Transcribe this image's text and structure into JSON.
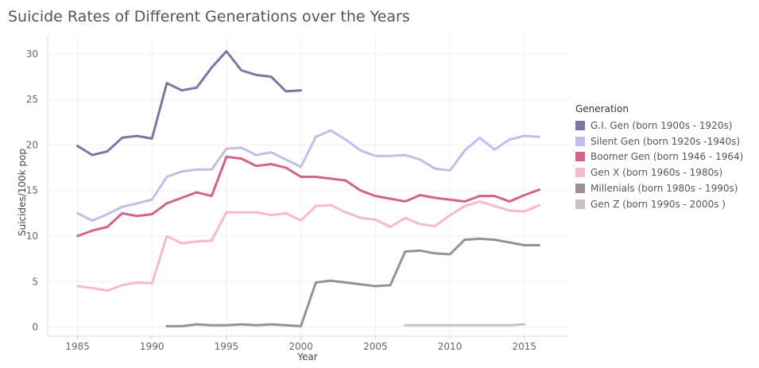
{
  "chart_data": {
    "type": "line",
    "title": "Suicide Rates of Different Generations over the Years",
    "xlabel": "Year",
    "ylabel": "Suicides/100k pop",
    "xlim": [
      1983,
      2018
    ],
    "ylim": [
      -1,
      32
    ],
    "x_ticks": [
      1985,
      1990,
      1995,
      2000,
      2005,
      2010,
      2015
    ],
    "y_ticks": [
      0,
      5,
      10,
      15,
      20,
      25,
      30
    ],
    "grid": true,
    "legend_title": "Generation",
    "legend_position": "right",
    "series": [
      {
        "name": "G.I. Gen (born 1900s - 1920s)",
        "color": "#8173a9",
        "x": [
          1985,
          1986,
          1987,
          1988,
          1989,
          1990,
          1991,
          1992,
          1993,
          1994,
          1995,
          1996,
          1997,
          1998,
          1999,
          2000
        ],
        "y": [
          19.9,
          18.9,
          19.3,
          20.8,
          21.0,
          20.7,
          26.8,
          26.0,
          26.3,
          28.5,
          30.3,
          28.2,
          27.7,
          27.5,
          25.9,
          26.0
        ]
      },
      {
        "name": "Silent Gen (born 1920s -1940s)",
        "color": "#c5bde9",
        "x": [
          1985,
          1986,
          1987,
          1988,
          1989,
          1990,
          1991,
          1992,
          1993,
          1994,
          1995,
          1996,
          1997,
          1998,
          1999,
          2000,
          2001,
          2002,
          2003,
          2004,
          2005,
          2006,
          2007,
          2008,
          2009,
          2010,
          2011,
          2012,
          2013,
          2014,
          2015,
          2016
        ],
        "y": [
          12.5,
          11.7,
          12.4,
          13.2,
          13.6,
          14.0,
          16.5,
          17.1,
          17.3,
          17.3,
          19.6,
          19.7,
          18.9,
          19.2,
          18.4,
          17.6,
          20.9,
          21.6,
          20.6,
          19.4,
          18.8,
          18.8,
          18.9,
          18.4,
          17.4,
          17.2,
          19.4,
          20.8,
          19.5,
          20.6,
          21.0,
          20.9
        ]
      },
      {
        "name": "Boomer Gen (born 1946 - 1964)",
        "color": "#d5628b",
        "x": [
          1985,
          1986,
          1987,
          1988,
          1989,
          1990,
          1991,
          1992,
          1993,
          1994,
          1995,
          1996,
          1997,
          1998,
          1999,
          2000,
          2001,
          2002,
          2003,
          2004,
          2005,
          2006,
          2007,
          2008,
          2009,
          2010,
          2011,
          2012,
          2013,
          2014,
          2015,
          2016
        ],
        "y": [
          10.0,
          10.6,
          11.0,
          12.5,
          12.2,
          12.4,
          13.6,
          14.2,
          14.8,
          14.4,
          18.7,
          18.5,
          17.7,
          17.9,
          17.5,
          16.5,
          16.5,
          16.3,
          16.1,
          15.0,
          14.4,
          14.1,
          13.8,
          14.5,
          14.2,
          14.0,
          13.8,
          14.4,
          14.4,
          13.8,
          14.5,
          15.1
        ]
      },
      {
        "name": "Gen X (born 1960s - 1980s)",
        "color": "#f7b8d0",
        "x": [
          1985,
          1986,
          1987,
          1988,
          1989,
          1990,
          1991,
          1992,
          1993,
          1994,
          1995,
          1996,
          1997,
          1998,
          1999,
          2000,
          2001,
          2002,
          2003,
          2004,
          2005,
          2006,
          2007,
          2008,
          2009,
          2010,
          2011,
          2012,
          2013,
          2014,
          2015,
          2016
        ],
        "y": [
          4.5,
          4.3,
          4.0,
          4.6,
          4.9,
          4.8,
          10.0,
          9.2,
          9.4,
          9.5,
          12.6,
          12.6,
          12.6,
          12.3,
          12.5,
          11.7,
          13.3,
          13.4,
          12.6,
          12.0,
          11.8,
          11.0,
          12.0,
          11.3,
          11.1,
          12.3,
          13.3,
          13.8,
          13.3,
          12.8,
          12.7,
          13.4
        ]
      },
      {
        "name": "Millenials (born 1980s - 1990s)",
        "color": "#9b908f",
        "x": [
          1991,
          1992,
          1993,
          1994,
          1995,
          1996,
          1997,
          1998,
          1999,
          2000,
          2001,
          2002,
          2003,
          2004,
          2005,
          2006,
          2007,
          2008,
          2009,
          2010,
          2011,
          2012,
          2013,
          2014,
          2015,
          2016
        ],
        "y": [
          0.1,
          0.1,
          0.3,
          0.2,
          0.2,
          0.3,
          0.2,
          0.3,
          0.2,
          0.1,
          4.9,
          5.1,
          4.9,
          4.7,
          4.5,
          4.6,
          8.3,
          8.4,
          8.1,
          8.0,
          9.6,
          9.7,
          9.6,
          9.3,
          9.0,
          9.0
        ]
      },
      {
        "name": "Gen Z (born 1990s - 2000s )",
        "color": "#c8c1c0",
        "x": [
          2007,
          2008,
          2009,
          2010,
          2011,
          2012,
          2013,
          2014,
          2015
        ],
        "y": [
          0.2,
          0.2,
          0.2,
          0.2,
          0.2,
          0.2,
          0.2,
          0.2,
          0.3
        ]
      }
    ]
  }
}
